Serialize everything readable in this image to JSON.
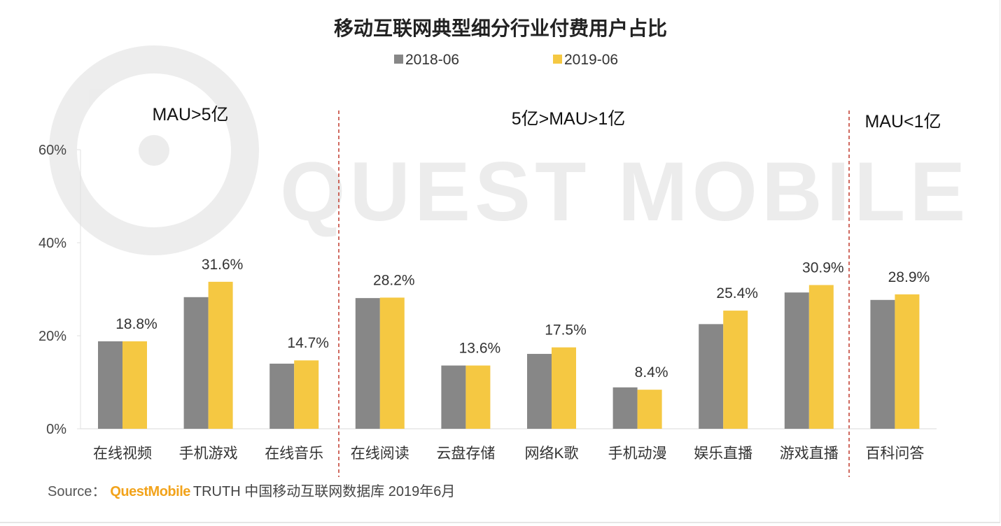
{
  "chart_data": {
    "type": "bar",
    "title": "移动互联网典型细分行业付费用户占比",
    "categories": [
      "在线视频",
      "手机游戏",
      "在线音乐",
      "在线阅读",
      "云盘存储",
      "网络K歌",
      "手机动漫",
      "娱乐直播",
      "游戏直播",
      "百科问答"
    ],
    "series": [
      {
        "name": "2018-06",
        "color": "#878787",
        "values": [
          18.8,
          28.3,
          14.0,
          28.1,
          13.6,
          16.1,
          8.9,
          22.5,
          29.3,
          27.7
        ]
      },
      {
        "name": "2019-06",
        "color": "#f5c842",
        "values": [
          18.8,
          31.6,
          14.7,
          28.2,
          13.6,
          17.5,
          8.4,
          25.4,
          30.9,
          28.9
        ],
        "data_labels": [
          "18.8%",
          "31.6%",
          "14.7%",
          "28.2%",
          "13.6%",
          "17.5%",
          "8.4%",
          "25.4%",
          "30.9%",
          "28.9%"
        ]
      }
    ],
    "ylim": [
      0,
      60
    ],
    "yticks": [
      "0%",
      "20%",
      "40%",
      "60%"
    ],
    "ytick_values": [
      0,
      20,
      40,
      60
    ],
    "legend_position": "top",
    "grid": false,
    "groups": [
      {
        "label": "MAU>5亿",
        "categories": 3
      },
      {
        "label": "5亿>MAU>1亿",
        "categories": 6
      },
      {
        "label": "MAU<1亿",
        "categories": 1
      }
    ],
    "divider_color": "#c0392b"
  },
  "watermark": "QUEST MOBILE",
  "source": {
    "label": "Source：",
    "brand": "QuestMobile",
    "text": "TRUTH 中国移动互联网数据库 2019年6月"
  }
}
